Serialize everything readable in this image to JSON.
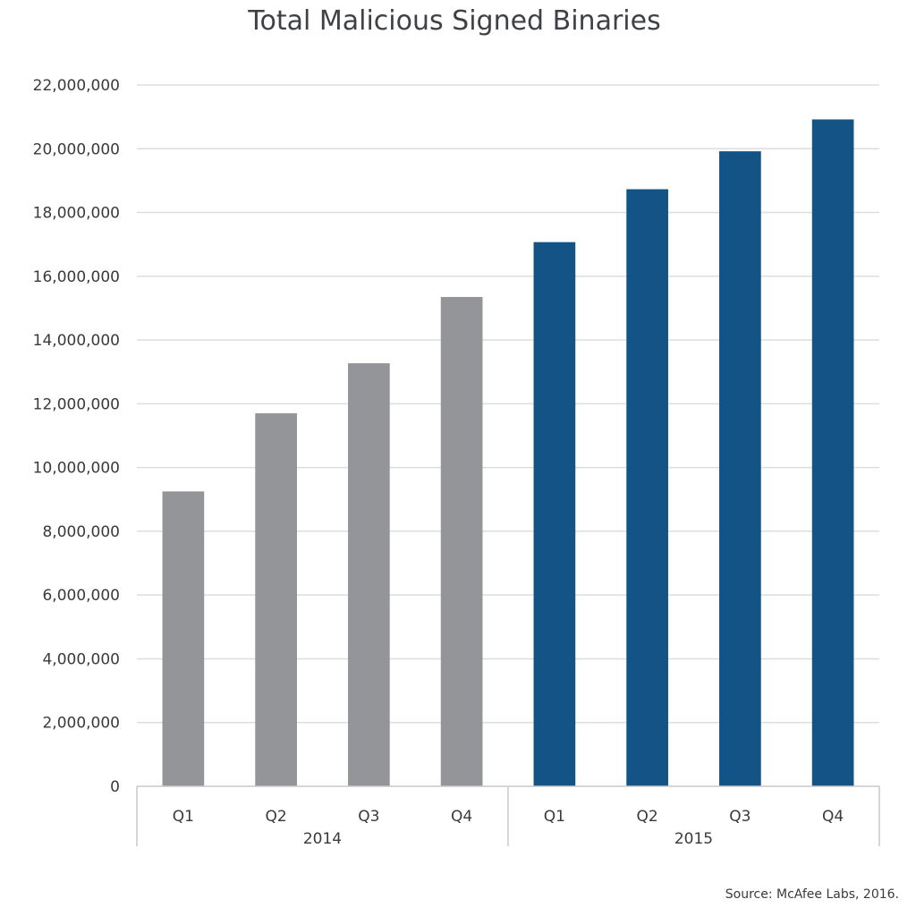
{
  "chart_data": {
    "type": "bar",
    "title": "Total Malicious Signed Binaries",
    "xlabel": "",
    "ylabel": "",
    "ylim": [
      0,
      22000000
    ],
    "yticks": [
      0,
      2000000,
      4000000,
      6000000,
      8000000,
      10000000,
      12000000,
      14000000,
      16000000,
      18000000,
      20000000,
      22000000
    ],
    "grid": true,
    "groups": [
      {
        "label": "2014",
        "color": "#939598",
        "categories": [
          "Q1",
          "Q2",
          "Q3",
          "Q4"
        ],
        "values": [
          9250000,
          11700000,
          13270000,
          15350000
        ]
      },
      {
        "label": "2015",
        "color": "#135385",
        "categories": [
          "Q1",
          "Q2",
          "Q3",
          "Q4"
        ],
        "values": [
          17070000,
          18730000,
          19920000,
          20920000
        ]
      }
    ],
    "source": "Source: McAfee Labs, 2016."
  }
}
